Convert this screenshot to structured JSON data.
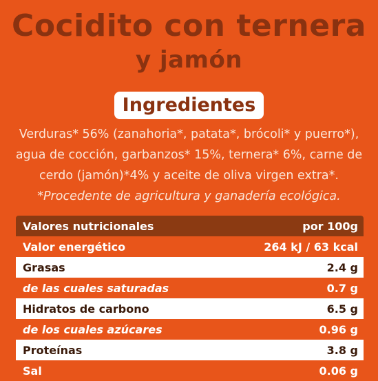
{
  "title": {
    "line1": "Cocidito con ternera",
    "line2": "y jamón"
  },
  "ingredients": {
    "heading": "Ingredientes",
    "lines": [
      "Verduras* 56% (zanahoria*, patata*, brócoli* y puerro*),",
      "agua de cocción, garbanzos* 15%, ternera* 6%, carne de",
      "cerdo (jamón)*4% y aceite de oliva virgen extra*."
    ],
    "note": "*Procedente de agricultura y ganadería ecológica."
  },
  "nutrition": {
    "header": {
      "label": "Valores nutricionales",
      "value": "por 100g"
    },
    "rows": [
      {
        "label": "Valor energético",
        "value": "264 kJ / 63 kcal"
      },
      {
        "label": "Grasas",
        "value": "2.4 g"
      },
      {
        "label": "de las cuales saturadas",
        "value": "0.7 g"
      },
      {
        "label": "Hidratos de carbono",
        "value": "6.5 g"
      },
      {
        "label": "de los cuales azúcares",
        "value": "0.96 g"
      },
      {
        "label": "Proteínas",
        "value": "3.8 g"
      },
      {
        "label": "Sal",
        "value": "0.06 g"
      }
    ]
  },
  "colors": {
    "background": "#E8551A",
    "title": "#8A3210",
    "table_header": "#8B3A12",
    "white_row": "#FFFFFF"
  }
}
